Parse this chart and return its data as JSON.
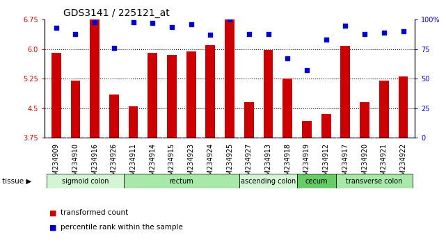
{
  "title": "GDS3141 / 225121_at",
  "samples": [
    "GSM234909",
    "GSM234910",
    "GSM234916",
    "GSM234926",
    "GSM234911",
    "GSM234914",
    "GSM234915",
    "GSM234923",
    "GSM234924",
    "GSM234925",
    "GSM234927",
    "GSM234913",
    "GSM234918",
    "GSM234919",
    "GSM234912",
    "GSM234917",
    "GSM234920",
    "GSM234921",
    "GSM234922"
  ],
  "bar_values": [
    5.9,
    5.2,
    6.75,
    4.85,
    4.55,
    5.9,
    5.85,
    5.95,
    6.1,
    6.75,
    4.65,
    5.98,
    5.25,
    4.18,
    4.35,
    6.08,
    4.65,
    5.2,
    5.3
  ],
  "percentile_values": [
    93,
    88,
    98,
    76,
    98,
    97,
    94,
    96,
    87,
    100,
    88,
    88,
    67,
    57,
    83,
    95,
    88,
    89,
    90
  ],
  "ylim_left": [
    3.75,
    6.75
  ],
  "ylim_right": [
    0,
    100
  ],
  "yticks_left": [
    3.75,
    4.5,
    5.25,
    6.0,
    6.75
  ],
  "yticks_right": [
    0,
    25,
    50,
    75,
    100
  ],
  "hlines": [
    4.5,
    5.25,
    6.0
  ],
  "bar_color": "#cc0000",
  "dot_color": "#0000cc",
  "plot_bg": "#ffffff",
  "fig_bg": "#ffffff",
  "xtick_bg": "#d0d0d0",
  "tissue_groups": [
    {
      "label": "sigmoid colon",
      "start": 0,
      "end": 4,
      "color": "#d4f5d4"
    },
    {
      "label": "rectum",
      "start": 4,
      "end": 10,
      "color": "#a8e8a8"
    },
    {
      "label": "ascending colon",
      "start": 10,
      "end": 13,
      "color": "#d4f5d4"
    },
    {
      "label": "cecum",
      "start": 13,
      "end": 15,
      "color": "#66cc66"
    },
    {
      "label": "transverse colon",
      "start": 15,
      "end": 19,
      "color": "#a8e8a8"
    }
  ],
  "legend_bar": "transformed count",
  "legend_dot": "percentile rank within the sample",
  "left_label_color": "#cc0000",
  "right_label_color": "#0000cc",
  "title_fontsize": 10,
  "tick_fontsize": 7,
  "xtick_fontsize": 7
}
